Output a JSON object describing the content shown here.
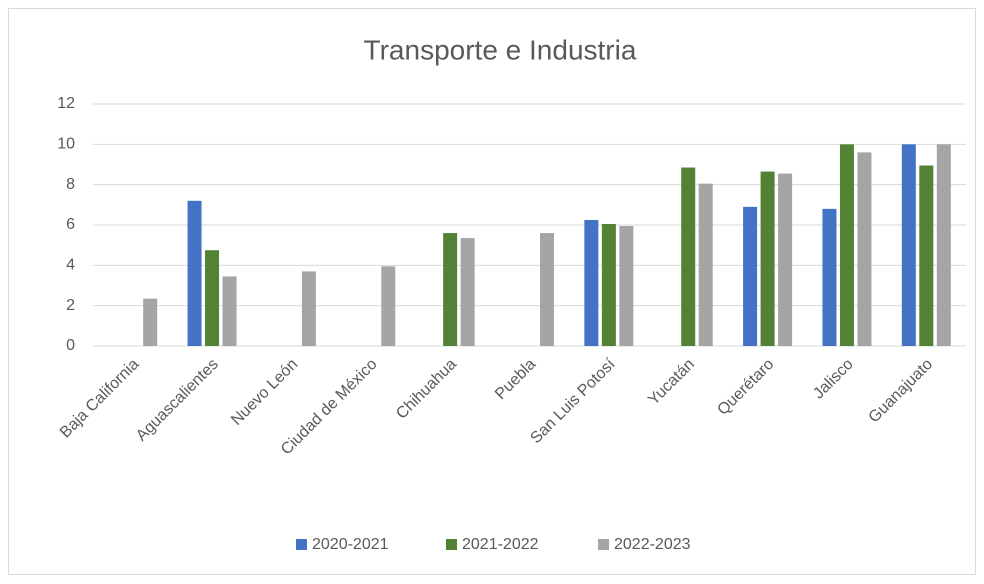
{
  "chart_data": {
    "type": "bar",
    "title": "Transporte e Industria",
    "categories": [
      "Baja California",
      "Aguascalientes",
      "Nuevo León",
      "Ciudad de México",
      "Chihuahua",
      "Puebla",
      "San Luis Potosí",
      "Yucatán",
      "Querétaro",
      "Jalisco",
      "Guanajuato"
    ],
    "series": [
      {
        "name": "2020-2021",
        "color": "#4472c4",
        "values": [
          null,
          7.2,
          null,
          null,
          null,
          null,
          6.25,
          null,
          6.9,
          6.8,
          10
        ]
      },
      {
        "name": "2021-2022",
        "color": "#548235",
        "values": [
          null,
          4.75,
          null,
          null,
          5.6,
          null,
          6.05,
          8.85,
          8.65,
          10,
          8.95
        ]
      },
      {
        "name": "2022-2023",
        "color": "#a5a5a5",
        "values": [
          2.35,
          3.45,
          3.7,
          3.95,
          5.35,
          5.6,
          5.95,
          8.05,
          8.55,
          9.6,
          10
        ]
      }
    ],
    "ylim": [
      0,
      12
    ],
    "yticks": [
      0,
      2,
      4,
      6,
      8,
      10,
      12
    ],
    "grid": true,
    "legend": "bottom"
  }
}
